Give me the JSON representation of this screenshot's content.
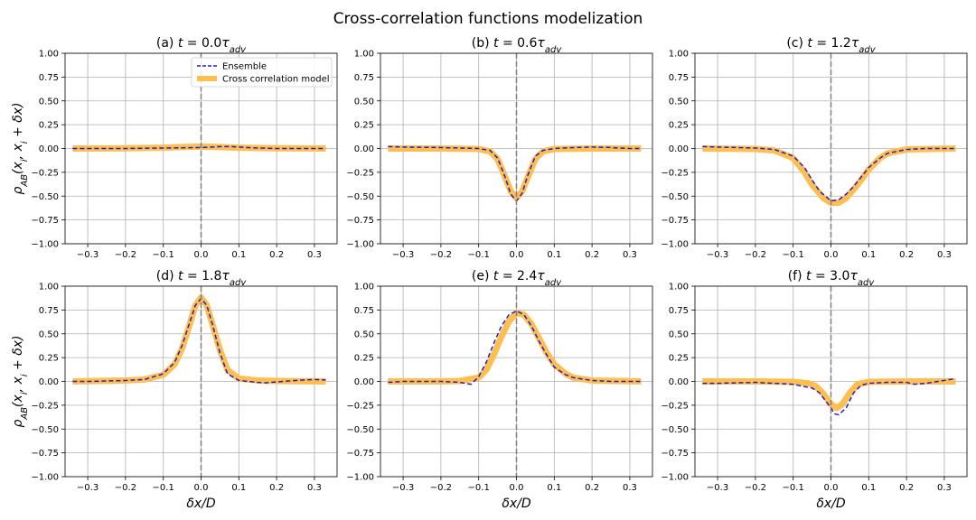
{
  "figure": {
    "title": "Cross-correlation functions modelization"
  },
  "colors": {
    "ensemble": "#1f1fd0",
    "model": "#ffbe50",
    "vline": "#808080"
  },
  "chart_data": [
    {
      "type": "line",
      "title": "(a) t = 0.0τ_adv",
      "title_parts": {
        "pre": "(a) ",
        "t": "t",
        "eq": " = 0.0",
        "tau": "τ",
        "sub": "adv"
      },
      "xlabel": "",
      "ylabel": "ρ_AB(x_i, x_i + δx)",
      "xlim": [
        -0.36,
        0.36
      ],
      "ylim": [
        -1.0,
        1.0
      ],
      "xticks": [
        "−0.3",
        "−0.2",
        "−0.1",
        "0.0",
        "0.1",
        "0.2",
        "0.3"
      ],
      "yticks": [
        "−1.00",
        "−0.75",
        "−0.50",
        "−0.25",
        "0.00",
        "0.25",
        "0.50",
        "0.75",
        "1.00"
      ],
      "grid": true,
      "legend": {
        "placement": "top-right",
        "entries": [
          "Ensemble",
          "Cross correlation model"
        ]
      },
      "vline_x": 0.0,
      "series": [
        {
          "name": "Ensemble",
          "x": [
            -0.34,
            -0.3,
            -0.2,
            -0.1,
            0.0,
            0.05,
            0.08,
            0.1,
            0.15,
            0.2,
            0.25,
            0.3,
            0.33
          ],
          "y": [
            0.0,
            0.0,
            0.0,
            0.005,
            0.01,
            0.02,
            0.02,
            0.015,
            0.005,
            0.0,
            0.0,
            0.0,
            0.0
          ]
        },
        {
          "name": "Cross correlation model",
          "x": [
            -0.34,
            -0.2,
            -0.1,
            -0.05,
            0.0,
            0.05,
            0.1,
            0.2,
            0.33
          ],
          "y": [
            0.0,
            0.002,
            0.008,
            0.015,
            0.02,
            0.015,
            0.008,
            0.002,
            0.0
          ]
        }
      ]
    },
    {
      "type": "line",
      "title": "(b) t = 0.6τ_adv",
      "title_parts": {
        "pre": "(b) ",
        "t": "t",
        "eq": " = 0.6",
        "tau": "τ",
        "sub": "adv"
      },
      "xlabel": "",
      "ylabel": "",
      "xlim": [
        -0.36,
        0.36
      ],
      "ylim": [
        -1.0,
        1.0
      ],
      "xticks": [
        "−0.3",
        "−0.2",
        "−0.1",
        "0.0",
        "0.1",
        "0.2",
        "0.3"
      ],
      "yticks": [
        "−1.00",
        "−0.75",
        "−0.50",
        "−0.25",
        "0.00",
        "0.25",
        "0.50",
        "0.75",
        "1.00"
      ],
      "grid": true,
      "vline_x": 0.0,
      "series": [
        {
          "name": "Ensemble",
          "x": [
            -0.34,
            -0.3,
            -0.2,
            -0.1,
            -0.07,
            -0.05,
            -0.03,
            -0.015,
            0.0,
            0.015,
            0.03,
            0.05,
            0.07,
            0.1,
            0.15,
            0.2,
            0.25,
            0.3,
            0.33
          ],
          "y": [
            0.02,
            0.015,
            0.01,
            0.0,
            -0.02,
            -0.1,
            -0.3,
            -0.48,
            -0.55,
            -0.47,
            -0.28,
            -0.08,
            -0.02,
            0.0,
            0.01,
            0.015,
            0.01,
            0.0,
            0.0
          ]
        },
        {
          "name": "Cross correlation model",
          "x": [
            -0.34,
            -0.2,
            -0.1,
            -0.07,
            -0.05,
            -0.03,
            -0.015,
            0.0,
            0.015,
            0.03,
            0.05,
            0.07,
            0.1,
            0.2,
            0.33
          ],
          "y": [
            0.0,
            0.0,
            -0.005,
            -0.03,
            -0.11,
            -0.3,
            -0.45,
            -0.52,
            -0.45,
            -0.3,
            -0.11,
            -0.03,
            -0.005,
            0.0,
            0.0
          ]
        }
      ]
    },
    {
      "type": "line",
      "title": "(c) t = 1.2τ_adv",
      "title_parts": {
        "pre": "(c) ",
        "t": "t",
        "eq": " = 1.2",
        "tau": "τ",
        "sub": "adv"
      },
      "xlabel": "",
      "ylabel": "",
      "xlim": [
        -0.36,
        0.36
      ],
      "ylim": [
        -1.0,
        1.0
      ],
      "xticks": [
        "−0.3",
        "−0.2",
        "−0.1",
        "0.0",
        "0.1",
        "0.2",
        "0.3"
      ],
      "yticks": [
        "−1.00",
        "−0.75",
        "−0.50",
        "−0.25",
        "0.00",
        "0.25",
        "0.50",
        "0.75",
        "1.00"
      ],
      "grid": true,
      "vline_x": 0.0,
      "series": [
        {
          "name": "Ensemble",
          "x": [
            -0.34,
            -0.3,
            -0.2,
            -0.15,
            -0.1,
            -0.07,
            -0.05,
            -0.03,
            0.0,
            0.02,
            0.04,
            0.06,
            0.08,
            0.1,
            0.13,
            0.15,
            0.2,
            0.25,
            0.3,
            0.33
          ],
          "y": [
            0.02,
            0.015,
            0.005,
            -0.01,
            -0.08,
            -0.2,
            -0.33,
            -0.45,
            -0.55,
            -0.54,
            -0.48,
            -0.4,
            -0.3,
            -0.2,
            -0.1,
            -0.05,
            -0.01,
            0.0,
            0.0,
            0.0
          ]
        },
        {
          "name": "Cross correlation model",
          "x": [
            -0.34,
            -0.2,
            -0.15,
            -0.1,
            -0.07,
            -0.05,
            -0.02,
            0.0,
            0.02,
            0.04,
            0.06,
            0.08,
            0.1,
            0.13,
            0.15,
            0.2,
            0.33
          ],
          "y": [
            0.0,
            -0.005,
            -0.02,
            -0.1,
            -0.25,
            -0.38,
            -0.52,
            -0.57,
            -0.57,
            -0.52,
            -0.43,
            -0.33,
            -0.22,
            -0.1,
            -0.05,
            -0.01,
            0.0
          ]
        }
      ]
    },
    {
      "type": "line",
      "title": "(d) t = 1.8τ_adv",
      "title_parts": {
        "pre": "(d) ",
        "t": "t",
        "eq": " = 1.8",
        "tau": "τ",
        "sub": "adv"
      },
      "xlabel": "δx/D",
      "ylabel": "ρ_AB(x_i, x_i + δx)",
      "xlim": [
        -0.36,
        0.36
      ],
      "ylim": [
        -1.0,
        1.0
      ],
      "xticks": [
        "−0.3",
        "−0.2",
        "−0.1",
        "0.0",
        "0.1",
        "0.2",
        "0.3"
      ],
      "yticks": [
        "−1.00",
        "−0.75",
        "−0.50",
        "−0.25",
        "0.00",
        "0.25",
        "0.50",
        "0.75",
        "1.00"
      ],
      "grid": true,
      "vline_x": 0.0,
      "series": [
        {
          "name": "Ensemble",
          "x": [
            -0.34,
            -0.3,
            -0.2,
            -0.15,
            -0.1,
            -0.07,
            -0.05,
            -0.03,
            -0.015,
            0.0,
            0.015,
            0.03,
            0.05,
            0.07,
            0.1,
            0.15,
            0.17,
            0.2,
            0.25,
            0.3,
            0.33
          ],
          "y": [
            0.0,
            0.0,
            0.01,
            0.02,
            0.08,
            0.2,
            0.38,
            0.62,
            0.8,
            0.87,
            0.8,
            0.6,
            0.3,
            0.08,
            0.01,
            -0.01,
            -0.015,
            -0.005,
            0.01,
            0.02,
            0.015
          ]
        },
        {
          "name": "Cross correlation model",
          "x": [
            -0.34,
            -0.2,
            -0.15,
            -0.1,
            -0.07,
            -0.05,
            -0.03,
            -0.015,
            0.0,
            0.015,
            0.03,
            0.05,
            0.07,
            0.1,
            0.15,
            0.2,
            0.33
          ],
          "y": [
            0.0,
            0.01,
            0.02,
            0.07,
            0.18,
            0.35,
            0.6,
            0.8,
            0.88,
            0.8,
            0.6,
            0.33,
            0.12,
            0.03,
            0.01,
            0.005,
            0.0
          ]
        }
      ]
    },
    {
      "type": "line",
      "title": "(e) t = 2.4τ_adv",
      "title_parts": {
        "pre": "(e) ",
        "t": "t",
        "eq": " = 2.4",
        "tau": "τ",
        "sub": "adv"
      },
      "xlabel": "δx/D",
      "ylabel": "",
      "xlim": [
        -0.36,
        0.36
      ],
      "ylim": [
        -1.0,
        1.0
      ],
      "xticks": [
        "−0.3",
        "−0.2",
        "−0.1",
        "0.0",
        "0.1",
        "0.2",
        "0.3"
      ],
      "yticks": [
        "−1.00",
        "−0.75",
        "−0.50",
        "−0.25",
        "0.00",
        "0.25",
        "0.50",
        "0.75",
        "1.00"
      ],
      "grid": true,
      "vline_x": 0.0,
      "series": [
        {
          "name": "Ensemble",
          "x": [
            -0.34,
            -0.3,
            -0.2,
            -0.15,
            -0.12,
            -0.1,
            -0.08,
            -0.06,
            -0.04,
            -0.02,
            0.0,
            0.02,
            0.04,
            0.06,
            0.08,
            0.1,
            0.13,
            0.15,
            0.2,
            0.25,
            0.3,
            0.33
          ],
          "y": [
            -0.01,
            0.0,
            0.0,
            -0.01,
            -0.03,
            0.05,
            0.2,
            0.4,
            0.58,
            0.7,
            0.74,
            0.7,
            0.58,
            0.42,
            0.28,
            0.15,
            0.07,
            0.04,
            0.01,
            0.0,
            0.0,
            0.0
          ]
        },
        {
          "name": "Cross correlation model",
          "x": [
            -0.34,
            -0.2,
            -0.15,
            -0.1,
            -0.08,
            -0.06,
            -0.04,
            -0.02,
            0.0,
            0.02,
            0.04,
            0.06,
            0.08,
            0.1,
            0.13,
            0.15,
            0.2,
            0.33
          ],
          "y": [
            0.0,
            0.0,
            0.005,
            0.04,
            0.12,
            0.28,
            0.47,
            0.63,
            0.72,
            0.7,
            0.6,
            0.45,
            0.3,
            0.18,
            0.08,
            0.04,
            0.01,
            0.0
          ]
        }
      ]
    },
    {
      "type": "line",
      "title": "(f) t = 3.0τ_adv",
      "title_parts": {
        "pre": "(f) ",
        "t": "t",
        "eq": " = 3.0",
        "tau": "τ",
        "sub": "adv"
      },
      "xlabel": "δx/D",
      "ylabel": "",
      "xlim": [
        -0.36,
        0.36
      ],
      "ylim": [
        -1.0,
        1.0
      ],
      "xticks": [
        "−0.3",
        "−0.2",
        "−0.1",
        "0.0",
        "0.1",
        "0.2",
        "0.3"
      ],
      "yticks": [
        "−1.00",
        "−0.75",
        "−0.50",
        "−0.25",
        "0.00",
        "0.25",
        "0.50",
        "0.75",
        "1.00"
      ],
      "grid": true,
      "vline_x": 0.0,
      "series": [
        {
          "name": "Ensemble",
          "x": [
            -0.34,
            -0.3,
            -0.2,
            -0.15,
            -0.1,
            -0.05,
            -0.03,
            0.0,
            0.01,
            0.02,
            0.04,
            0.06,
            0.08,
            0.1,
            0.15,
            0.2,
            0.22,
            0.25,
            0.3,
            0.33
          ],
          "y": [
            -0.02,
            -0.02,
            -0.01,
            -0.02,
            -0.03,
            -0.07,
            -0.12,
            -0.28,
            -0.34,
            -0.35,
            -0.28,
            -0.12,
            -0.04,
            -0.02,
            -0.01,
            -0.01,
            -0.03,
            -0.02,
            0.01,
            0.03
          ]
        },
        {
          "name": "Cross correlation model",
          "x": [
            -0.34,
            -0.2,
            -0.1,
            -0.06,
            -0.04,
            -0.02,
            0.0,
            0.015,
            0.03,
            0.05,
            0.07,
            0.1,
            0.2,
            0.33
          ],
          "y": [
            0.0,
            0.0,
            -0.005,
            -0.02,
            -0.05,
            -0.13,
            -0.24,
            -0.28,
            -0.24,
            -0.12,
            -0.03,
            -0.005,
            0.0,
            0.0
          ]
        }
      ]
    }
  ]
}
